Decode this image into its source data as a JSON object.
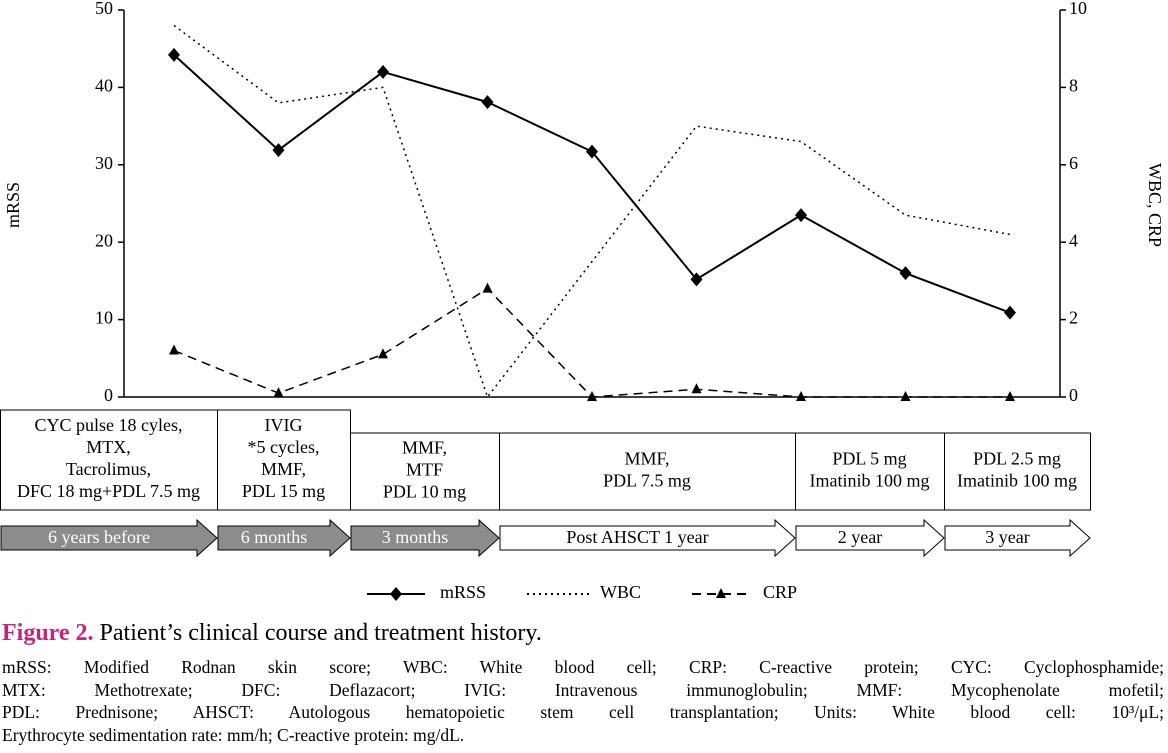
{
  "chart_data": {
    "type": "line",
    "categories": [
      null,
      null,
      null,
      null,
      null,
      null,
      null,
      null,
      null
    ],
    "ylabel": "mRSS",
    "y2label": "WBC, CRP",
    "ylim": [
      0,
      50
    ],
    "yticks": [
      0,
      10,
      20,
      30,
      40,
      50
    ],
    "y2lim": [
      0,
      10
    ],
    "y2ticks": [
      0,
      2,
      4,
      6,
      8,
      10
    ],
    "series": [
      {
        "name": "mRSS",
        "color": "#000000",
        "dash": "solid",
        "marker": "diamond",
        "values": [
          44.2,
          31.9,
          42,
          38.1,
          31.7,
          15.2,
          23.5,
          16,
          10.9
        ]
      },
      {
        "name": "WBC",
        "color": "#000000",
        "dash": "dotted",
        "marker": "none",
        "axis": "y2",
        "values": [
          9.6,
          7.6,
          8,
          0,
          3.5,
          7,
          6.6,
          4.7,
          4.2
        ]
      },
      {
        "name": "CRP",
        "color": "#000000",
        "dash": "dashed",
        "marker": "triangle",
        "axis": "y2",
        "values": [
          1.2,
          0.1,
          1.1,
          2.8,
          0,
          0.2,
          0,
          0,
          0
        ]
      }
    ]
  },
  "treatments": [
    [
      "CYC pulse 18 cyles,",
      "MTX,",
      "Tacrolimus,",
      "DFC 18 mg+PDL 7.5 mg"
    ],
    [
      "IVIG",
      "*5 cycles,",
      "MMF,",
      "PDL 15 mg"
    ],
    [
      "MMF,",
      "MTF",
      "PDL 10 mg"
    ],
    [
      "MMF,",
      "PDL 7.5 mg"
    ],
    [
      "PDL 5 mg",
      "Imatinib 100 mg"
    ],
    [
      "PDL 2.5 mg",
      "Imatinib 100 mg"
    ]
  ],
  "periods": [
    "6 years before",
    "6 months",
    "3 months",
    "Post AHSCT 1 year",
    "2 year",
    "3 year"
  ],
  "figure": {
    "label": "Figure 2.",
    "caption": "Patient’s clinical course and treatment history.",
    "notes": [
      "mRSS: Modified Rodnan skin score; WBC: White blood cell; CRP: C-reactive protein; CYC: Cyclophosphamide;",
      "MTX: Methotrexate; DFC: Deflazacort; IVIG: Intravenous immunoglobulin; MMF: Mycophenolate mofetil;",
      "PDL: Prednisone; AHSCT: Autologous hematopoietic stem cell transplantation; Units: White blood cell: 10³/μL;",
      "Erythrocyte sedimentation rate: mm/h; C-reactive protein: mg/dL."
    ]
  }
}
